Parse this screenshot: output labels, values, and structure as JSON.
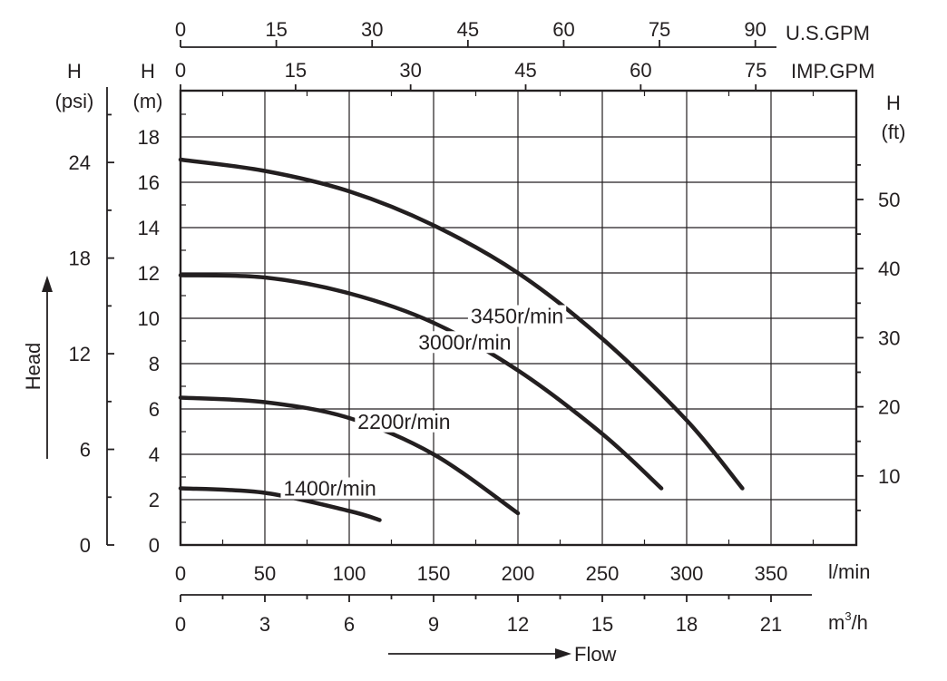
{
  "chart_data": {
    "type": "line",
    "title": "",
    "xlabel": "Flow",
    "ylabel": "Head",
    "x_unit": "l/min",
    "y_unit_label": [
      "H",
      "(m)"
    ],
    "xlim": [
      0,
      400
    ],
    "ylim": [
      0,
      20
    ],
    "grid": true,
    "x_ticks": [
      0,
      50,
      100,
      150,
      200,
      250,
      300,
      350
    ],
    "y_ticks": [
      0,
      2,
      4,
      6,
      8,
      10,
      12,
      14,
      16,
      18
    ],
    "secondary_axes": {
      "us_gpm": {
        "unit": "U.S.GPM",
        "ticks": [
          0,
          15,
          30,
          45,
          60,
          75,
          90
        ]
      },
      "imp_gpm": {
        "unit": "IMP.GPM",
        "ticks": [
          0,
          15,
          30,
          45,
          60,
          75
        ]
      },
      "m3h": {
        "unit": "m³/h",
        "unit_base": "m",
        "unit_sup": "3",
        "unit_tail": "/h",
        "ticks": [
          0,
          3,
          6,
          9,
          12,
          15,
          18,
          21
        ]
      },
      "psi": {
        "unit_label": [
          "H",
          "(psi)"
        ],
        "ticks": [
          0,
          6,
          12,
          18,
          24
        ]
      },
      "ft": {
        "unit_label": [
          "H",
          "(ft)"
        ],
        "ticks": [
          10,
          20,
          30,
          40,
          50
        ]
      }
    },
    "series": [
      {
        "name": "3450r/min",
        "x": [
          0,
          50,
          100,
          150,
          200,
          250,
          300,
          333
        ],
        "y": [
          17.0,
          16.5,
          15.6,
          14.1,
          12.0,
          9.1,
          5.5,
          2.5
        ]
      },
      {
        "name": "3000r/min",
        "x": [
          0,
          50,
          100,
          150,
          200,
          250,
          285
        ],
        "y": [
          11.9,
          11.8,
          11.1,
          9.8,
          7.7,
          4.9,
          2.5
        ]
      },
      {
        "name": "2200r/min",
        "x": [
          0,
          50,
          100,
          150,
          200
        ],
        "y": [
          6.5,
          6.3,
          5.6,
          4.0,
          1.4
        ]
      },
      {
        "name": "1400r/min",
        "x": [
          0,
          50,
          100,
          118
        ],
        "y": [
          2.5,
          2.3,
          1.5,
          1.1
        ]
      }
    ]
  }
}
